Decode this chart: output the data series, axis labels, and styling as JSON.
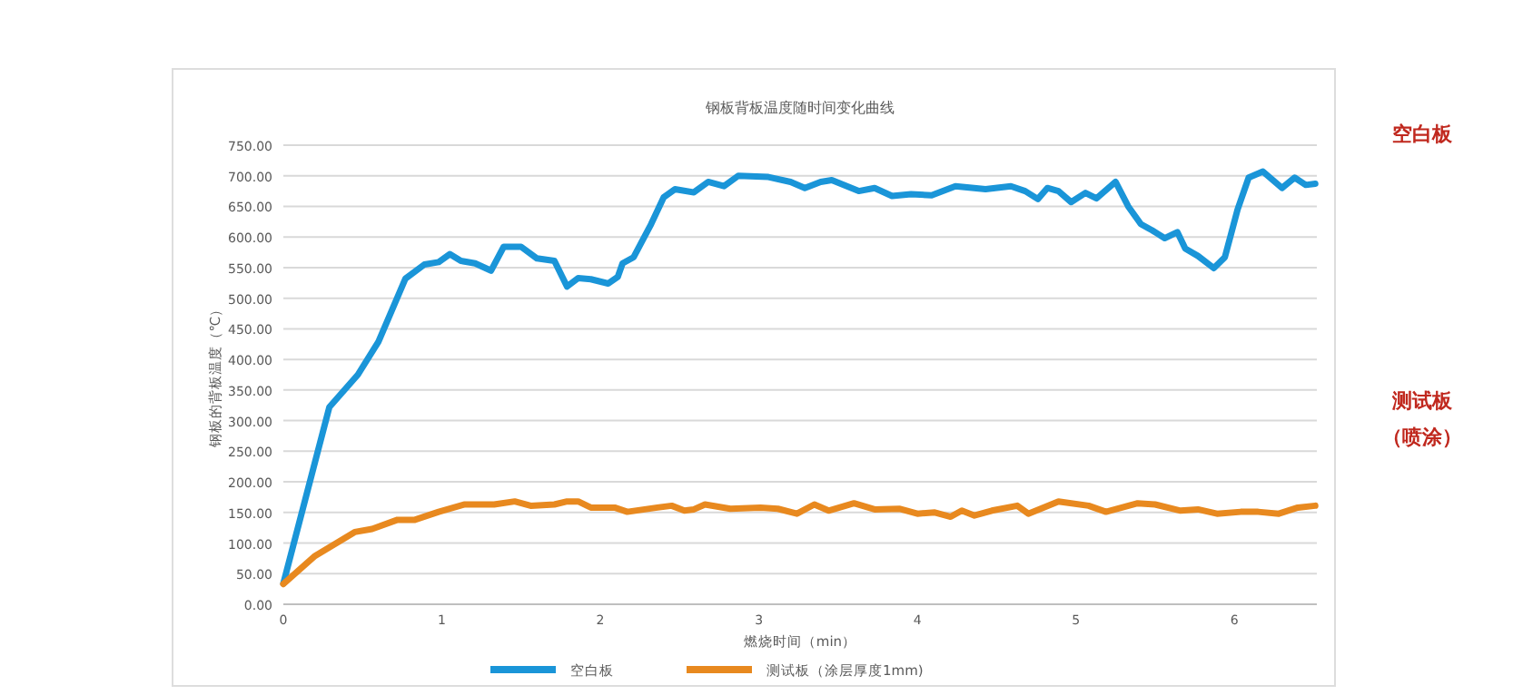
{
  "chart_data": {
    "type": "line",
    "title": "钢板背板温度随时间变化曲线",
    "xlabel": "燃烧时间（min）",
    "ylabel": "钢板的背板温度（℃）",
    "xlim": [
      0,
      6.52
    ],
    "xticks": [
      0,
      1,
      2,
      3,
      4,
      5,
      6
    ],
    "ylim": [
      0,
      750
    ],
    "yticks": [
      {
        "value": 0,
        "label": "0.00"
      },
      {
        "value": 50,
        "label": "50.00"
      },
      {
        "value": 100,
        "label": "100.00"
      },
      {
        "value": 150,
        "label": "150.00"
      },
      {
        "value": 200,
        "label": "200.00"
      },
      {
        "value": 250,
        "label": "250.00"
      },
      {
        "value": 300,
        "label": "300.00"
      },
      {
        "value": 350,
        "label": "350.00"
      },
      {
        "value": 400,
        "label": "400.00"
      },
      {
        "value": 450,
        "label": "450.00"
      },
      {
        "value": 500,
        "label": "500.00"
      },
      {
        "value": 550,
        "label": "550.00"
      },
      {
        "value": 600,
        "label": "600.00"
      },
      {
        "value": 650,
        "label": "650.00"
      },
      {
        "value": 700,
        "label": "700.00"
      },
      {
        "value": 750,
        "label": "750.00"
      }
    ],
    "grid": "y",
    "legend": "bottom",
    "marker": "none",
    "line_style": "solid",
    "annotations": [
      "空白板",
      "测试板",
      "（喷涂）"
    ],
    "series": [
      {
        "name": "空白板",
        "color": "#1a95d8",
        "x": [
          0,
          0.29,
          0.47,
          0.6,
          0.77,
          0.89,
          0.98,
          1.05,
          1.12,
          1.21,
          1.31,
          1.39,
          1.5,
          1.6,
          1.71,
          1.79,
          1.86,
          1.94,
          2.05,
          2.11,
          2.14,
          2.21,
          2.32,
          2.4,
          2.47,
          2.59,
          2.68,
          2.78,
          2.87,
          3.06,
          3.2,
          3.29,
          3.39,
          3.46,
          3.63,
          3.73,
          3.84,
          3.96,
          4.09,
          4.24,
          4.43,
          4.59,
          4.68,
          4.76,
          4.82,
          4.89,
          4.97,
          5.06,
          5.13,
          5.25,
          5.33,
          5.41,
          5.48,
          5.56,
          5.64,
          5.69,
          5.77,
          5.87,
          5.94,
          6.02,
          6.09,
          6.18,
          6.3,
          6.38,
          6.45,
          6.51
        ],
        "values": [
          34,
          322,
          375,
          429,
          532,
          555,
          559,
          572,
          561,
          557,
          545,
          584,
          584,
          565,
          561,
          519,
          533,
          531,
          524,
          535,
          557,
          567,
          621,
          665,
          678,
          673,
          690,
          683,
          700,
          698,
          690,
          680,
          690,
          693,
          675,
          680,
          667,
          670,
          668,
          683,
          678,
          683,
          675,
          662,
          680,
          675,
          657,
          672,
          663,
          690,
          650,
          621,
          611,
          598,
          608,
          581,
          569,
          549,
          567,
          645,
          697,
          707,
          680,
          697,
          685,
          687
        ]
      },
      {
        "name": "测试板（涂层厚度1mm)",
        "color": "#e8891f",
        "x": [
          0,
          0.2,
          0.45,
          0.56,
          0.72,
          0.83,
          0.98,
          1.14,
          1.33,
          1.46,
          1.56,
          1.71,
          1.79,
          1.86,
          1.94,
          2.09,
          2.17,
          2.36,
          2.45,
          2.53,
          2.59,
          2.66,
          2.82,
          3.01,
          3.12,
          3.24,
          3.35,
          3.44,
          3.6,
          3.73,
          3.89,
          4.0,
          4.11,
          4.21,
          4.28,
          4.36,
          4.47,
          4.63,
          4.7,
          4.89,
          5.08,
          5.19,
          5.39,
          5.5,
          5.66,
          5.77,
          5.89,
          6.04,
          6.15,
          6.28,
          6.4,
          6.51
        ],
        "values": [
          33,
          79,
          118,
          123,
          138,
          138,
          151,
          163,
          163,
          168,
          161,
          163,
          168,
          168,
          158,
          158,
          151,
          158,
          161,
          153,
          155,
          163,
          156,
          158,
          156,
          148,
          163,
          153,
          165,
          155,
          156,
          148,
          150,
          143,
          153,
          145,
          153,
          161,
          148,
          168,
          161,
          151,
          165,
          163,
          153,
          155,
          148,
          151,
          151,
          148,
          158,
          161
        ]
      }
    ]
  }
}
